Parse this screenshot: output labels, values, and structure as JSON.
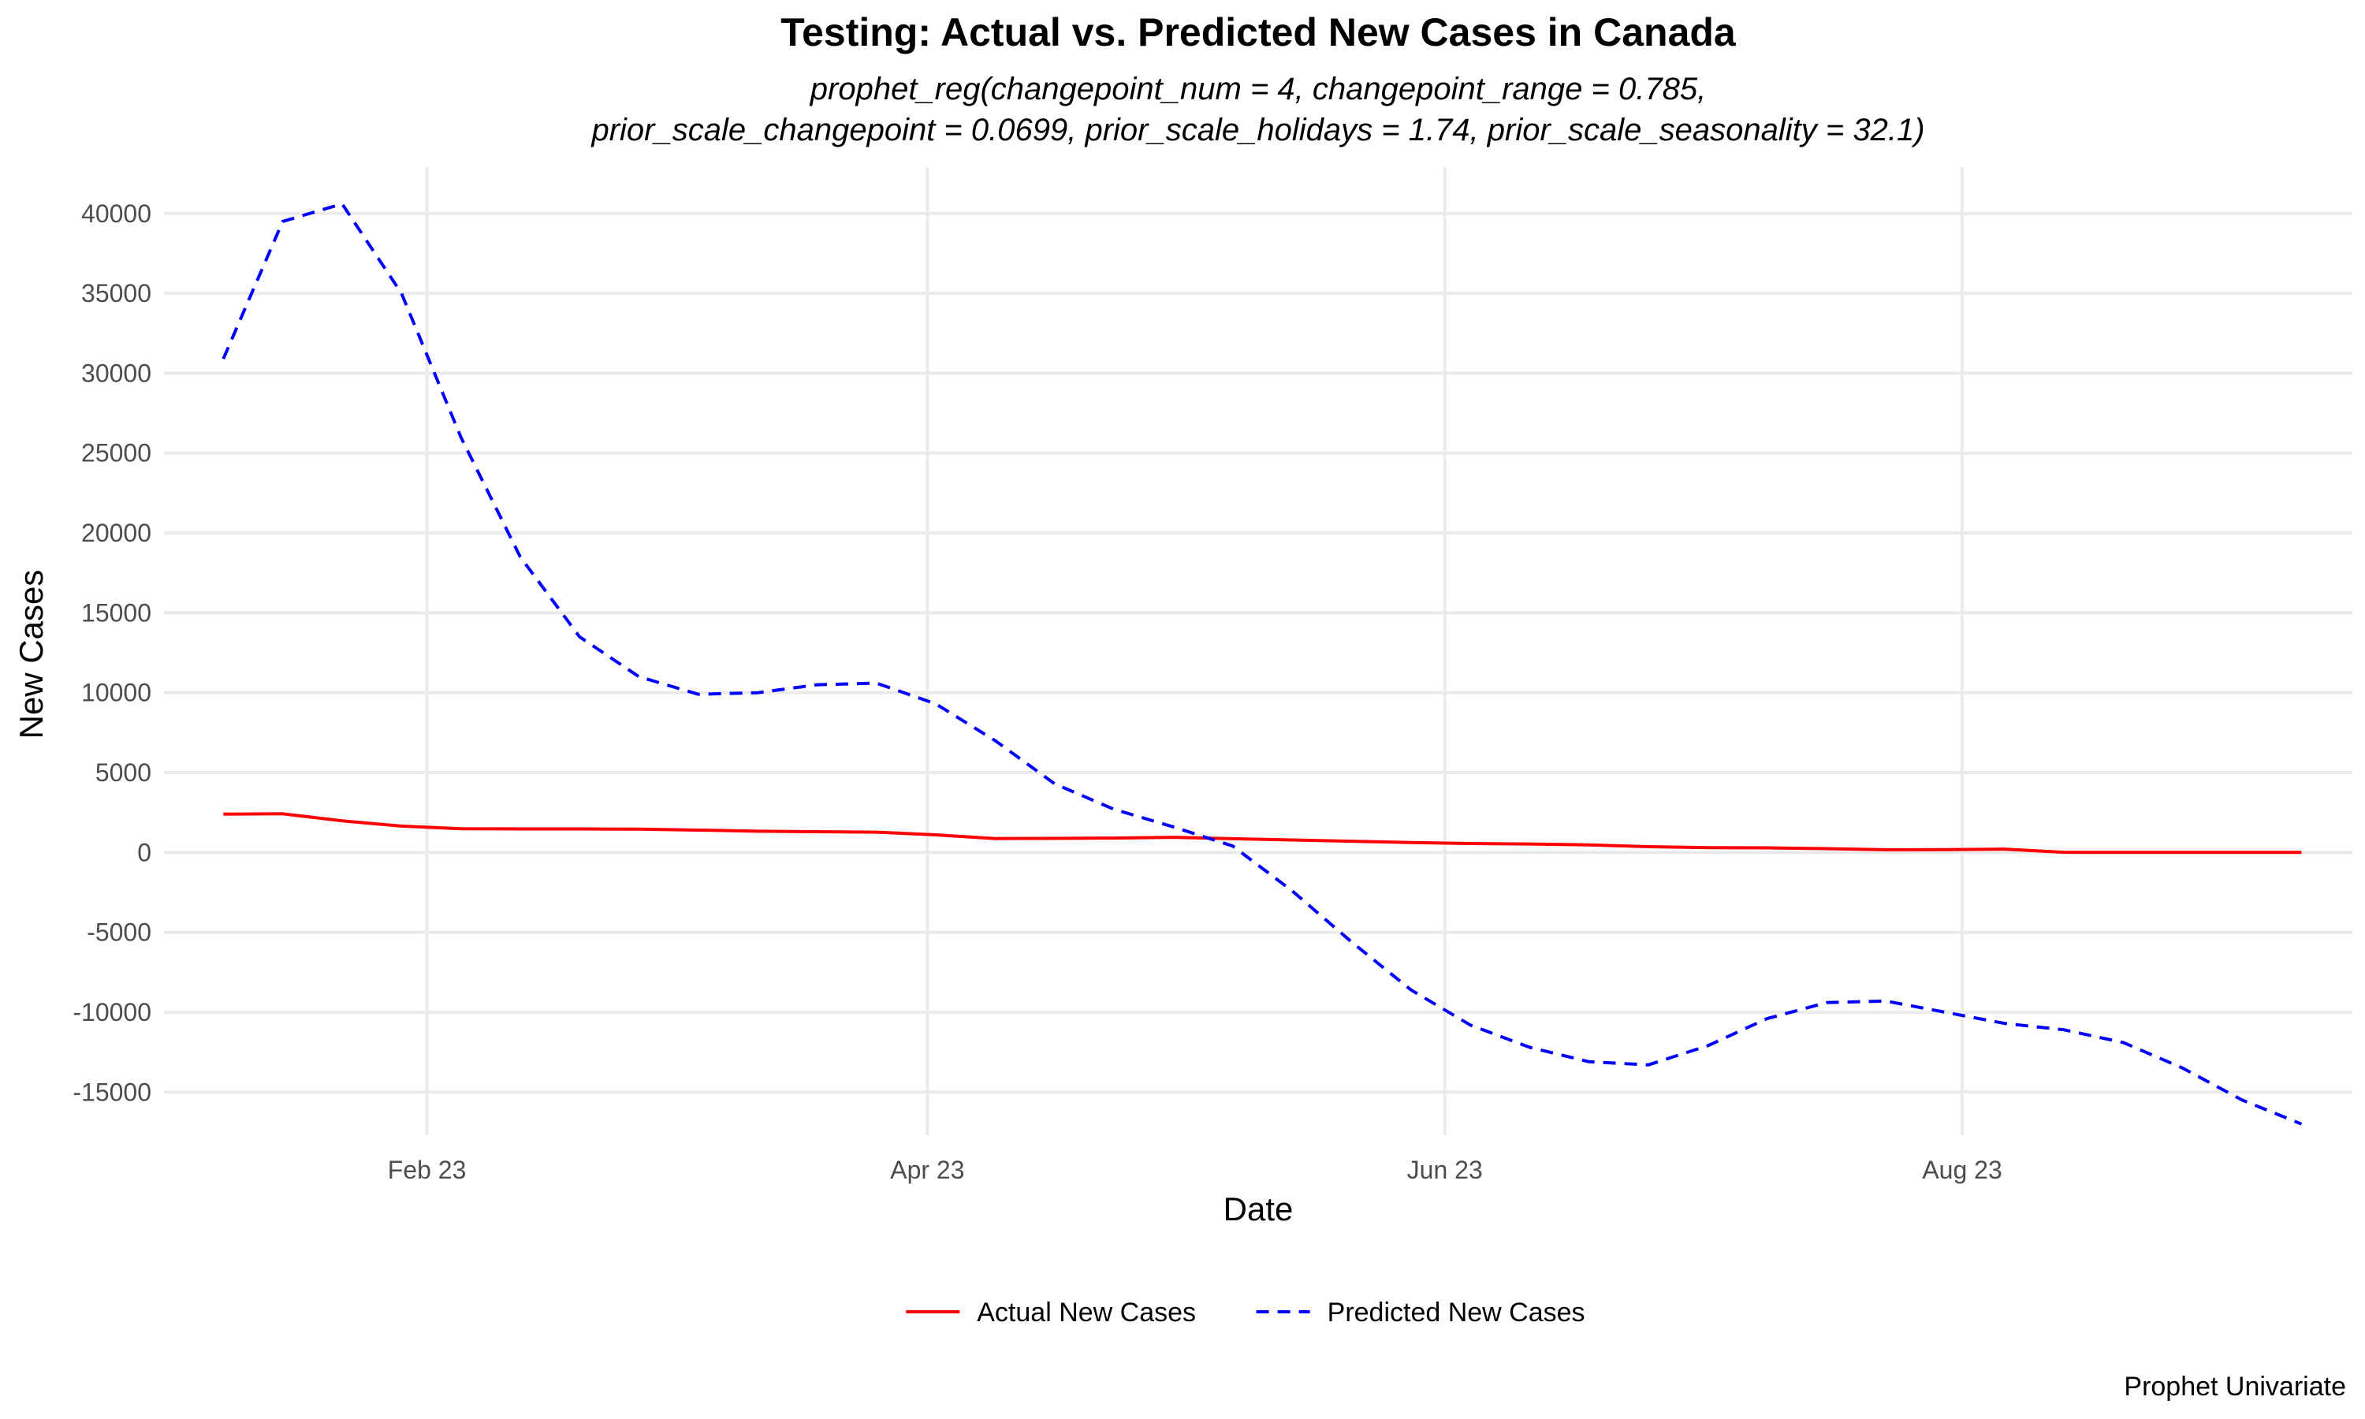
{
  "chart_data": {
    "type": "line",
    "title": "Testing: Actual vs. Predicted New Cases in Canada",
    "subtitle_lines": [
      "prophet_reg(changepoint_num = 4, changepoint_range = 0.785,",
      "prior_scale_changepoint = 0.0699, prior_scale_holidays = 1.74, prior_scale_seasonality = 32.1)"
    ],
    "xlabel": "Date",
    "ylabel": "New Cases",
    "caption": "Prophet Univariate",
    "x_ticks": [
      {
        "date": "2023-02-01",
        "label": "Feb 23"
      },
      {
        "date": "2023-04-01",
        "label": "Apr 23"
      },
      {
        "date": "2023-06-01",
        "label": "Jun 23"
      },
      {
        "date": "2023-08-01",
        "label": "Aug 23"
      }
    ],
    "xlim": [
      "2023-01-01",
      "2023-09-16"
    ],
    "y_ticks": [
      -15000,
      -10000,
      -5000,
      0,
      5000,
      10000,
      15000,
      20000,
      25000,
      30000,
      35000,
      40000
    ],
    "ylim": [
      -17700,
      42900
    ],
    "grid": true,
    "legend_position": "bottom",
    "series": [
      {
        "name": "Actual New Cases",
        "color": "#ff0000",
        "line_style": "solid",
        "points": [
          {
            "x": "2023-01-08",
            "y": 2400
          },
          {
            "x": "2023-01-15",
            "y": 2420
          },
          {
            "x": "2023-01-22",
            "y": 1980
          },
          {
            "x": "2023-01-29",
            "y": 1650
          },
          {
            "x": "2023-02-05",
            "y": 1480
          },
          {
            "x": "2023-02-12",
            "y": 1470
          },
          {
            "x": "2023-02-19",
            "y": 1470
          },
          {
            "x": "2023-02-26",
            "y": 1460
          },
          {
            "x": "2023-03-05",
            "y": 1400
          },
          {
            "x": "2023-03-12",
            "y": 1330
          },
          {
            "x": "2023-03-19",
            "y": 1300
          },
          {
            "x": "2023-03-26",
            "y": 1270
          },
          {
            "x": "2023-04-02",
            "y": 1100
          },
          {
            "x": "2023-04-09",
            "y": 870
          },
          {
            "x": "2023-04-16",
            "y": 880
          },
          {
            "x": "2023-04-23",
            "y": 900
          },
          {
            "x": "2023-04-30",
            "y": 950
          },
          {
            "x": "2023-05-07",
            "y": 860
          },
          {
            "x": "2023-05-14",
            "y": 780
          },
          {
            "x": "2023-05-21",
            "y": 700
          },
          {
            "x": "2023-05-28",
            "y": 620
          },
          {
            "x": "2023-06-04",
            "y": 560
          },
          {
            "x": "2023-06-11",
            "y": 530
          },
          {
            "x": "2023-06-18",
            "y": 470
          },
          {
            "x": "2023-06-25",
            "y": 360
          },
          {
            "x": "2023-07-02",
            "y": 300
          },
          {
            "x": "2023-07-09",
            "y": 290
          },
          {
            "x": "2023-07-16",
            "y": 240
          },
          {
            "x": "2023-07-23",
            "y": 170
          },
          {
            "x": "2023-07-30",
            "y": 180
          },
          {
            "x": "2023-08-06",
            "y": 210
          },
          {
            "x": "2023-08-13",
            "y": 10
          },
          {
            "x": "2023-08-20",
            "y": 0
          },
          {
            "x": "2023-08-27",
            "y": 0
          },
          {
            "x": "2023-09-03",
            "y": 0
          },
          {
            "x": "2023-09-10",
            "y": 0
          }
        ]
      },
      {
        "name": "Predicted New Cases",
        "color": "#0000ff",
        "line_style": "dashed",
        "points": [
          {
            "x": "2023-01-08",
            "y": 30900
          },
          {
            "x": "2023-01-15",
            "y": 39500
          },
          {
            "x": "2023-01-22",
            "y": 40600
          },
          {
            "x": "2023-01-29",
            "y": 35000
          },
          {
            "x": "2023-02-05",
            "y": 26000
          },
          {
            "x": "2023-02-12",
            "y": 18500
          },
          {
            "x": "2023-02-19",
            "y": 13500
          },
          {
            "x": "2023-02-26",
            "y": 11000
          },
          {
            "x": "2023-03-05",
            "y": 9900
          },
          {
            "x": "2023-03-12",
            "y": 10000
          },
          {
            "x": "2023-03-19",
            "y": 10500
          },
          {
            "x": "2023-03-26",
            "y": 10600
          },
          {
            "x": "2023-04-02",
            "y": 9300
          },
          {
            "x": "2023-04-09",
            "y": 7000
          },
          {
            "x": "2023-04-16",
            "y": 4300
          },
          {
            "x": "2023-04-23",
            "y": 2700
          },
          {
            "x": "2023-04-30",
            "y": 1600
          },
          {
            "x": "2023-05-07",
            "y": 400
          },
          {
            "x": "2023-05-14",
            "y": -2400
          },
          {
            "x": "2023-05-21",
            "y": -5600
          },
          {
            "x": "2023-05-28",
            "y": -8600
          },
          {
            "x": "2023-06-04",
            "y": -10800
          },
          {
            "x": "2023-06-11",
            "y": -12200
          },
          {
            "x": "2023-06-18",
            "y": -13100
          },
          {
            "x": "2023-06-25",
            "y": -13300
          },
          {
            "x": "2023-07-02",
            "y": -12100
          },
          {
            "x": "2023-07-09",
            "y": -10400
          },
          {
            "x": "2023-07-16",
            "y": -9400
          },
          {
            "x": "2023-07-23",
            "y": -9300
          },
          {
            "x": "2023-07-30",
            "y": -10000
          },
          {
            "x": "2023-08-06",
            "y": -10700
          },
          {
            "x": "2023-08-13",
            "y": -11100
          },
          {
            "x": "2023-08-20",
            "y": -11900
          },
          {
            "x": "2023-08-27",
            "y": -13500
          },
          {
            "x": "2023-09-03",
            "y": -15500
          },
          {
            "x": "2023-09-10",
            "y": -17000
          }
        ]
      }
    ]
  }
}
